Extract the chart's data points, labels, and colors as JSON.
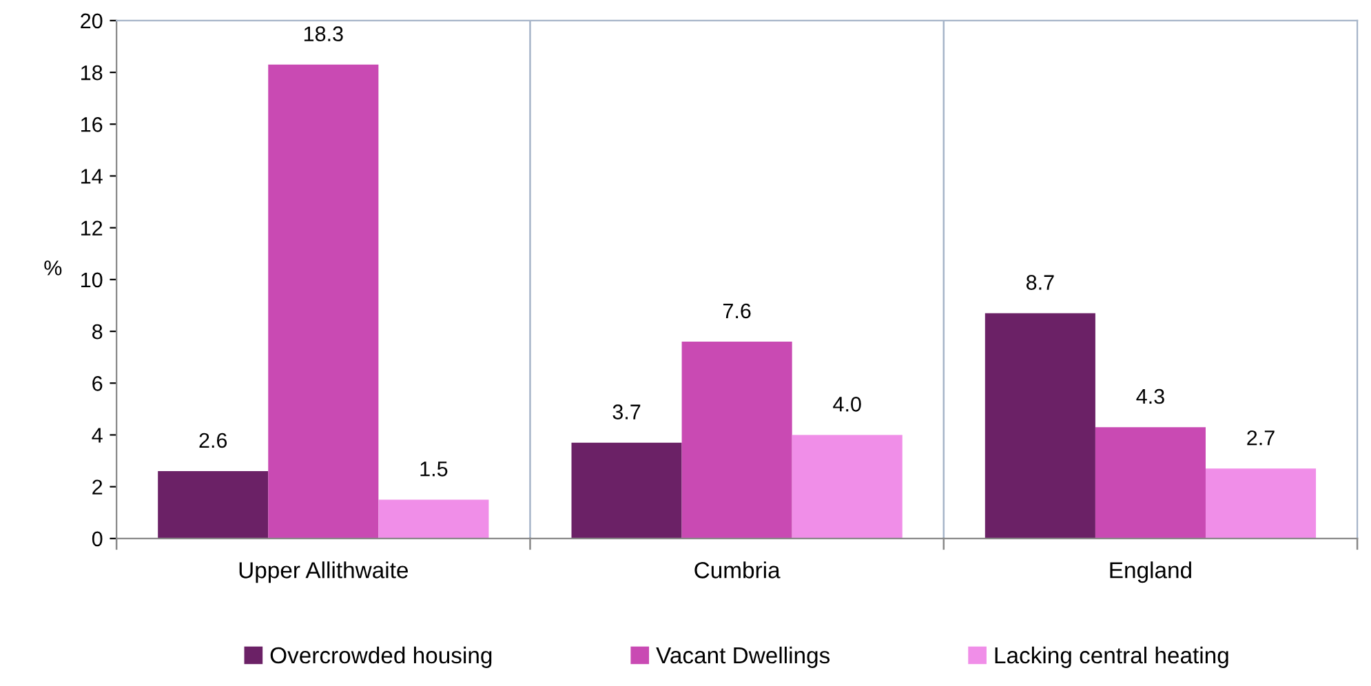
{
  "chart_data": {
    "type": "bar",
    "ylabel": "%",
    "categories": [
      "Upper Allithwaite",
      "Cumbria",
      "England"
    ],
    "series": [
      {
        "name": "Overcrowded housing",
        "color": "#6b2166",
        "values": [
          2.6,
          3.7,
          8.7
        ],
        "value_labels": [
          "2.6",
          "3.7",
          "8.7"
        ]
      },
      {
        "name": "Vacant Dwellings",
        "color": "#c94ab3",
        "values": [
          18.3,
          7.6,
          4.3
        ],
        "value_labels": [
          "18.3",
          "7.6",
          "4.3"
        ]
      },
      {
        "name": "Lacking central heating",
        "color": "#f08ee8",
        "values": [
          1.5,
          4.0,
          2.7
        ],
        "value_labels": [
          "1.5",
          "4.0",
          "2.7"
        ]
      }
    ],
    "ylim": [
      0,
      20
    ],
    "yticks": [
      0,
      2,
      4,
      6,
      8,
      10,
      12,
      14,
      16,
      18,
      20
    ],
    "grid": "x",
    "legend": "bottom"
  }
}
